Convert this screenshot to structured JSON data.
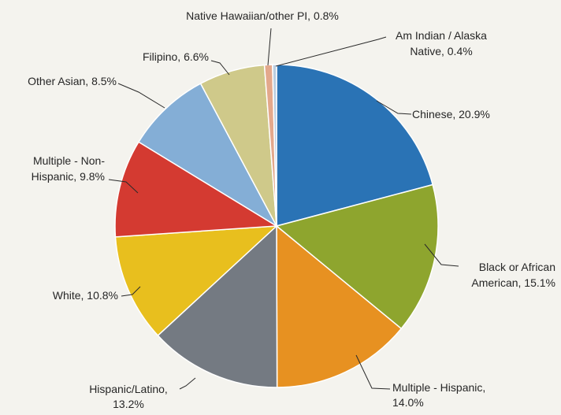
{
  "chart_data": {
    "type": "pie",
    "title": "",
    "slices": [
      {
        "label_lines": [
          "Chinese, 20.9%"
        ],
        "value": 20.9,
        "color": "#2a73b5"
      },
      {
        "label_lines": [
          "Black or African",
          "American, 15.1%"
        ],
        "value": 15.1,
        "color": "#8ea52e"
      },
      {
        "label_lines": [
          "Multiple - Hispanic,",
          "14.0%"
        ],
        "value": 14.0,
        "color": "#e79121"
      },
      {
        "label_lines": [
          "Hispanic/Latino,",
          "13.2%"
        ],
        "value": 13.2,
        "color": "#747a82"
      },
      {
        "label_lines": [
          "White, 10.8%"
        ],
        "value": 10.8,
        "color": "#e8bf1e"
      },
      {
        "label_lines": [
          "Multiple - Non-",
          "Hispanic, 9.8%"
        ],
        "value": 9.8,
        "color": "#d43a31"
      },
      {
        "label_lines": [
          "Other Asian, 8.5%"
        ],
        "value": 8.5,
        "color": "#84aed6"
      },
      {
        "label_lines": [
          "Filipino, 6.6%"
        ],
        "value": 6.6,
        "color": "#cfc98a"
      },
      {
        "label_lines": [
          "Native Hawaiian/other PI, 0.8%"
        ],
        "value": 0.8,
        "color": "#e3a88c"
      },
      {
        "label_lines": [
          "Am Indian / Alaska",
          "Native, 0.4%"
        ],
        "value": 0.4,
        "color": "#b9cde0"
      }
    ]
  }
}
